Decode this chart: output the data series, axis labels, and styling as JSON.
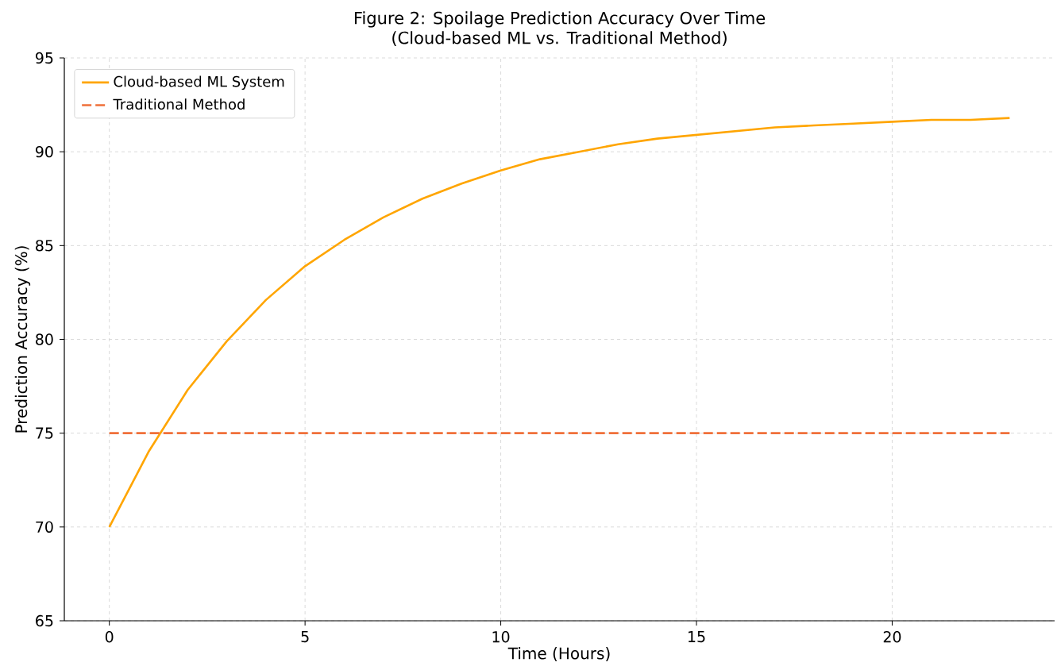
{
  "chart_data": {
    "type": "line",
    "title": "Figure 2: Spoilage Prediction Accuracy Over Time",
    "subtitle": "(Cloud-based ML vs. Traditional Method)",
    "xlabel": "Time (Hours)",
    "ylabel": "Prediction Accuracy (%)",
    "series": [
      {
        "name": "Cloud-based ML System",
        "color": "#ffa500",
        "line_style": "solid",
        "x": [
          0,
          1,
          2,
          3,
          4,
          5,
          6,
          7,
          8,
          9,
          10,
          11,
          12,
          13,
          14,
          15,
          16,
          17,
          18,
          19,
          20,
          21,
          22,
          23
        ],
        "values": [
          70,
          74,
          77.3,
          79.9,
          82.1,
          83.9,
          85.3,
          86.5,
          87.5,
          88.3,
          89.0,
          89.6,
          90.0,
          90.4,
          90.7,
          90.9,
          91.1,
          91.3,
          91.4,
          91.5,
          91.6,
          91.7,
          91.7,
          91.8
        ]
      },
      {
        "name": "Traditional Method",
        "color": "#f0703a",
        "line_style": "dashed",
        "x": [
          0,
          23
        ],
        "values": [
          75,
          75
        ]
      }
    ],
    "xlim": [
      -1.15,
      24.15
    ],
    "ylim": [
      65,
      95
    ],
    "xticks": [
      0,
      5,
      10,
      15,
      20
    ],
    "yticks": [
      65,
      70,
      75,
      80,
      85,
      90,
      95
    ],
    "grid": true,
    "legend": "top left",
    "marker": "none"
  }
}
